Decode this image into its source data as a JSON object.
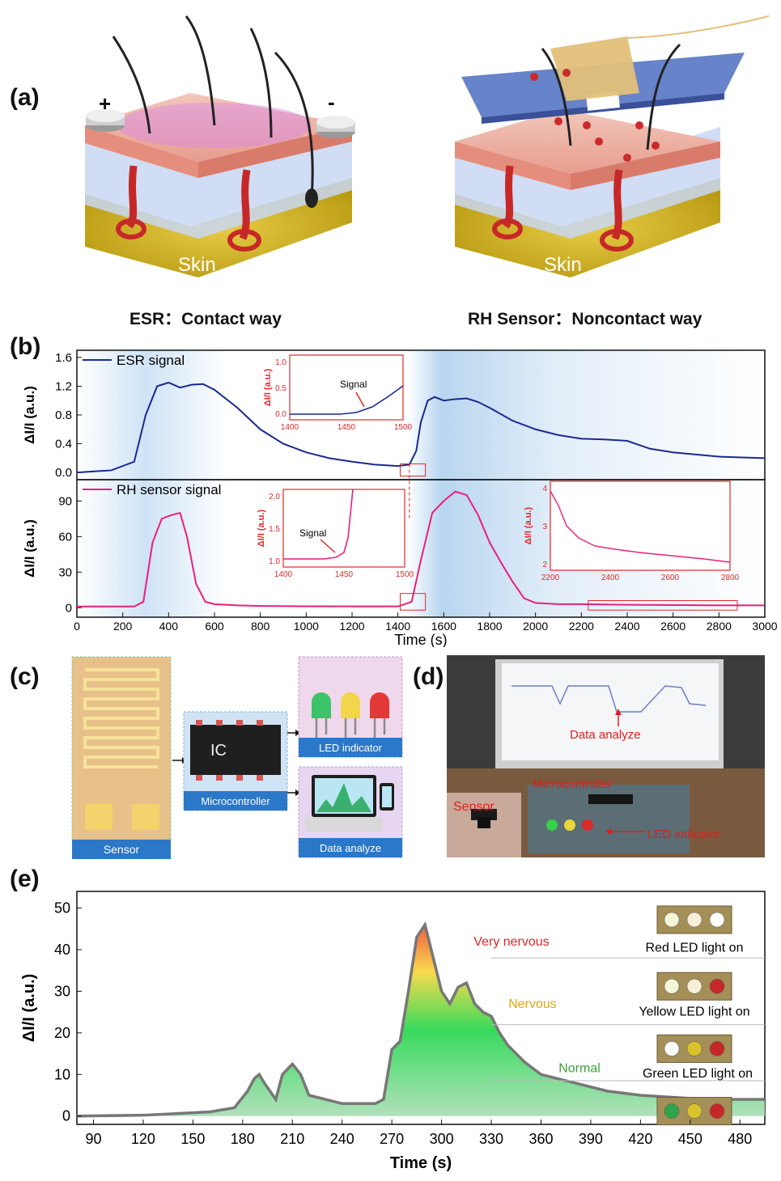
{
  "panel_a": {
    "label": "(a)",
    "left": {
      "skin_label": "Skin",
      "plus": "+",
      "minus": "-",
      "caption": "ESR：Contact way"
    },
    "right": {
      "skin_label": "Skin",
      "caption": "RH Sensor：Noncontact way"
    }
  },
  "panel_b": {
    "label": "(b)",
    "xlabel": "Time (s)",
    "xticks": [
      "0",
      "200",
      "400",
      "600",
      "800",
      "1000",
      "1200",
      "1400",
      "1600",
      "1800",
      "2000",
      "2200",
      "2400",
      "2600",
      "2800",
      "3000"
    ],
    "top": {
      "ylabel": "ΔI/I (a.u.)",
      "legend": "ESR signal",
      "yticks": [
        "0.0",
        "0.4",
        "0.8",
        "1.2",
        "1.6"
      ],
      "inset": {
        "ylabel": "ΔI/I (a.u.)",
        "annotation": "Signal",
        "xticks": [
          "1400",
          "1450",
          "1500"
        ],
        "yticks": [
          "0.0",
          "0.5",
          "1.0"
        ]
      }
    },
    "bottom": {
      "ylabel": "ΔI/I (a.u.)",
      "legend": "RH sensor  signal",
      "yticks": [
        "0",
        "30",
        "60",
        "90"
      ],
      "inset1": {
        "ylabel": "ΔI/I (a.u.)",
        "annotation": "Signal",
        "xticks": [
          "1400",
          "1450",
          "1500"
        ],
        "yticks": [
          "1.0",
          "1.5",
          "2.0"
        ]
      },
      "inset2": {
        "ylabel": "ΔI/I (a.u.)",
        "xticks": [
          "2200",
          "2400",
          "2600",
          "2800"
        ],
        "yticks": [
          "2",
          "3",
          "4"
        ]
      }
    }
  },
  "panel_c": {
    "label": "(c)",
    "sensor": "Sensor",
    "ic": "IC",
    "microcontroller": "Microcontroller",
    "led": "LED indicator",
    "data": "Data analyze"
  },
  "panel_d": {
    "label": "(d)",
    "data": "Data analyze",
    "microcontroller": "Microcontroller",
    "sensor": "Sensor",
    "led": "LED indicator"
  },
  "panel_e": {
    "label": "(e)",
    "xlabel": "Time (s)",
    "ylabel": "ΔI/I (a.u.)",
    "xticks": [
      "90",
      "120",
      "150",
      "180",
      "210",
      "240",
      "270",
      "300",
      "330",
      "360",
      "390",
      "420",
      "450",
      "480"
    ],
    "yticks": [
      "0",
      "10",
      "20",
      "30",
      "40",
      "50"
    ],
    "levels": {
      "very": "Very nervous",
      "nervous": "Nervous",
      "normal": "Normal"
    },
    "leds": {
      "red": "Red LED light on",
      "yellow": "Yellow LED light on",
      "green": "Green LED light on"
    }
  },
  "chart_data": [
    {
      "type": "line",
      "title": "",
      "xlabel": "Time (s)",
      "ylabel": "ΔI/I (a.u.)",
      "xlim": [
        0,
        3000
      ],
      "ylim": [
        -0.1,
        1.7
      ],
      "series": [
        {
          "name": "ESR signal",
          "x": [
            0,
            150,
            250,
            300,
            350,
            400,
            450,
            500,
            550,
            600,
            700,
            800,
            900,
            1000,
            1100,
            1200,
            1300,
            1400,
            1450,
            1480,
            1500,
            1530,
            1560,
            1600,
            1650,
            1700,
            1750,
            1800,
            1900,
            2000,
            2100,
            2200,
            2300,
            2400,
            2500,
            2600,
            2800,
            3000
          ],
          "y": [
            0,
            0.03,
            0.15,
            0.8,
            1.2,
            1.25,
            1.18,
            1.22,
            1.23,
            1.15,
            0.9,
            0.6,
            0.4,
            0.28,
            0.2,
            0.15,
            0.11,
            0.09,
            0.11,
            0.3,
            0.7,
            1.0,
            1.05,
            1.0,
            1.02,
            1.03,
            0.98,
            0.9,
            0.72,
            0.6,
            0.52,
            0.47,
            0.46,
            0.44,
            0.33,
            0.28,
            0.22,
            0.2
          ]
        }
      ]
    },
    {
      "type": "line",
      "title": "",
      "xlabel": "Time (s)",
      "ylabel": "ΔI/I (a.u.)",
      "xlim": [
        0,
        3000
      ],
      "ylim": [
        -8,
        108
      ],
      "series": [
        {
          "name": "RH sensor  signal",
          "x": [
            0,
            250,
            290,
            330,
            370,
            410,
            450,
            480,
            520,
            560,
            600,
            700,
            800,
            1000,
            1200,
            1400,
            1460,
            1500,
            1550,
            1600,
            1650,
            1700,
            1750,
            1800,
            1850,
            1900,
            1950,
            2000,
            2100,
            2200,
            2400,
            2600,
            2800,
            3000
          ],
          "y": [
            1,
            1,
            5,
            55,
            75,
            78,
            80,
            60,
            20,
            5,
            3,
            2,
            1.5,
            1.2,
            1.1,
            1.1,
            5,
            40,
            80,
            90,
            98,
            95,
            78,
            55,
            38,
            22,
            8,
            4,
            3,
            3,
            2.5,
            2.2,
            2,
            2
          ]
        }
      ]
    },
    {
      "type": "area",
      "title": "",
      "xlabel": "Time (s)",
      "ylabel": "ΔI/I (a.u.)",
      "xlim": [
        80,
        495
      ],
      "ylim": [
        -2,
        54
      ],
      "series": [
        {
          "name": "",
          "x": [
            80,
            120,
            160,
            175,
            183,
            187,
            190,
            193,
            200,
            204,
            210,
            215,
            220,
            240,
            260,
            265,
            270,
            275,
            280,
            285,
            290,
            295,
            300,
            305,
            310,
            315,
            320,
            325,
            330,
            335,
            340,
            350,
            360,
            370,
            380,
            390,
            400,
            420,
            440,
            460,
            480,
            495
          ],
          "y": [
            0,
            0.2,
            1,
            2,
            6,
            9,
            10,
            8,
            4,
            10,
            12.5,
            10,
            5,
            3,
            3,
            4,
            16,
            18,
            30,
            43,
            46,
            38,
            30,
            27,
            31,
            32,
            27,
            25,
            24,
            20,
            17,
            13,
            10,
            9,
            8,
            7,
            6,
            5,
            4.5,
            4,
            4,
            4
          ]
        }
      ]
    }
  ]
}
